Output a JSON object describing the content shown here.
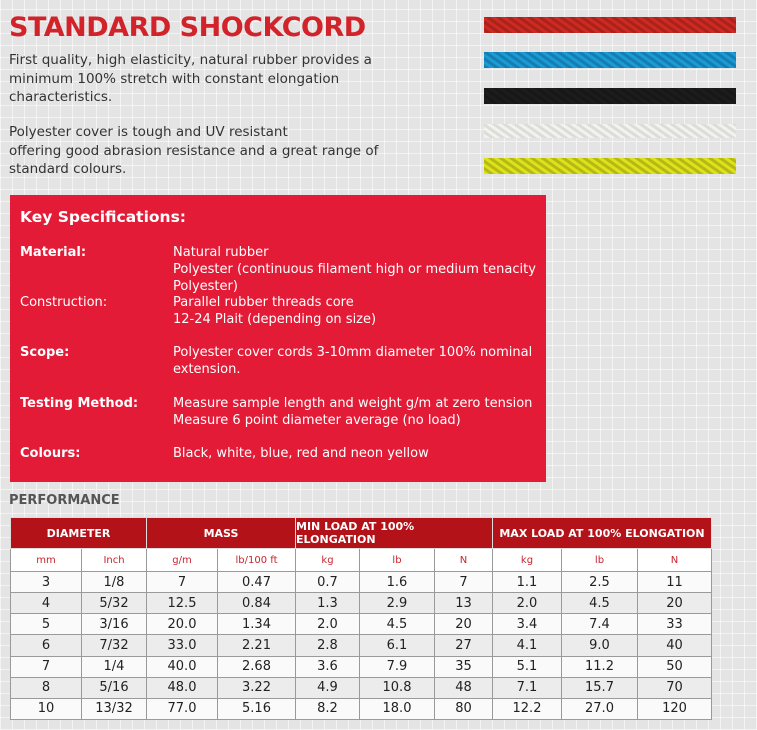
{
  "header": {
    "title": "STANDARD SHOCKCORD",
    "paragraphs": [
      [
        "First quality, high elasticity, natural rubber provides a",
        "minimum 100% stretch with constant elongation",
        "characteristics."
      ],
      [
        "Polyester cover is tough and UV resistant",
        "offering good abrasion resistance and a great range of",
        "standard colours."
      ]
    ]
  },
  "specifications": {
    "title": "Key Specifications:",
    "items": [
      {
        "label": "Material:",
        "lines": [
          "Natural rubber",
          "Polyester (continuous filament high or medium tenacity",
          "Polyester)"
        ]
      },
      {
        "label": "Construction:",
        "lines": [
          "Parallel rubber threads core",
          "12-24 Plait (depending on size)"
        ]
      },
      {
        "label": "Scope:",
        "lines": [
          "Polyester cover cords 3-10mm diameter 100% nominal",
          "extension."
        ]
      },
      {
        "label": "Testing Method:",
        "lines": [
          "Measure sample length and weight g/m at zero tension",
          "Measure 6 point diameter average (no load)"
        ]
      },
      {
        "label": "Colours:",
        "lines": [
          "Black, white, blue, red and neon yellow"
        ]
      }
    ]
  },
  "performance": {
    "title": "PERFORMANCE",
    "groups": [
      "DIAMETER",
      "MASS",
      "MIN LOAD AT 100% ELONGATION",
      "MAX LOAD AT 100% ELONGATION"
    ],
    "units": [
      "mm",
      "Inch",
      "g/m",
      "lb/100 ft",
      "kg",
      "lb",
      "N",
      "kg",
      "lb",
      "N"
    ],
    "rows": [
      [
        "3",
        "1/8",
        "7",
        "0.47",
        "0.7",
        "1.6",
        "7",
        "1.1",
        "2.5",
        "11"
      ],
      [
        "4",
        "5/32",
        "12.5",
        "0.84",
        "1.3",
        "2.9",
        "13",
        "2.0",
        "4.5",
        "20"
      ],
      [
        "5",
        "3/16",
        "20.0",
        "1.34",
        "2.0",
        "4.5",
        "20",
        "3.4",
        "7.4",
        "33"
      ],
      [
        "6",
        "7/32",
        "33.0",
        "2.21",
        "2.8",
        "6.1",
        "27",
        "4.1",
        "9.0",
        "40"
      ],
      [
        "7",
        "1/4",
        "40.0",
        "2.68",
        "3.6",
        "7.9",
        "35",
        "5.1",
        "11.2",
        "50"
      ],
      [
        "8",
        "5/16",
        "48.0",
        "3.22",
        "4.9",
        "10.8",
        "48",
        "7.1",
        "15.7",
        "70"
      ],
      [
        "10",
        "13/32",
        "77.0",
        "5.16",
        "8.2",
        "18.0",
        "80",
        "12.2",
        "27.0",
        "120"
      ]
    ]
  }
}
